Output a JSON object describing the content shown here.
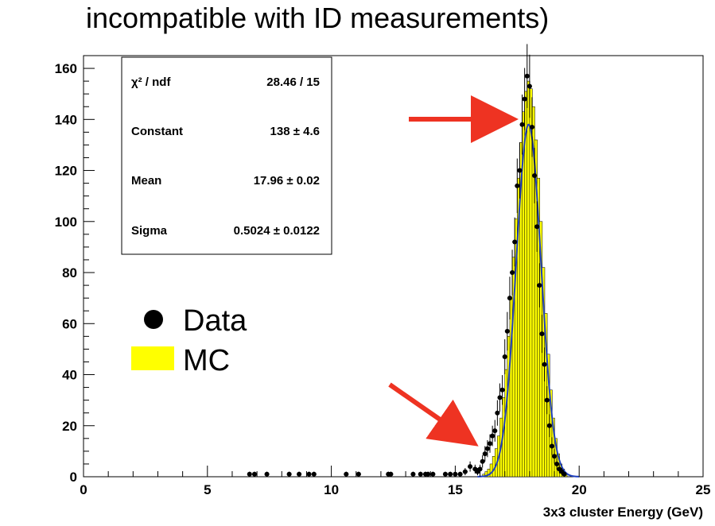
{
  "title": "incompatible with ID measurements)",
  "stats_box": {
    "rows": [
      {
        "label": "χ² / ndf",
        "value": "28.46 / 15"
      },
      {
        "label": "Constant",
        "value": "138 ± 4.6"
      },
      {
        "label": "Mean",
        "value": "17.96 ± 0.02"
      },
      {
        "label": "Sigma",
        "value": "0.5024 ± 0.0122"
      }
    ]
  },
  "legend": {
    "items": [
      {
        "label": "Data",
        "marker": "black-dot"
      },
      {
        "label": "MC",
        "marker": "yellow-box"
      }
    ]
  },
  "colors": {
    "mc_fill": "#ffff00",
    "fit_line": "#1f3fbf",
    "data_marker": "#000000",
    "arrow": "#ee3322",
    "frame": "#000000"
  },
  "chart_data": {
    "type": "scatter",
    "xlabel": "3x3 cluster Energy (GeV)",
    "ylabel": "",
    "xlim": [
      0,
      25
    ],
    "ylim": [
      0,
      165
    ],
    "x_ticks": [
      "0",
      "5",
      "10",
      "15",
      "20",
      "25"
    ],
    "y_ticks": [
      "0",
      "20",
      "40",
      "60",
      "80",
      "100",
      "120",
      "140",
      "160"
    ],
    "grid": false,
    "legend_position": "left-middle",
    "series": [
      {
        "name": "Data",
        "kind": "points",
        "x": [
          6.7,
          6.9,
          7.4,
          8.3,
          8.7,
          9.1,
          9.3,
          10.6,
          11.1,
          12.3,
          12.4,
          13.3,
          13.6,
          13.8,
          13.9,
          14.1,
          14.6,
          14.8,
          15.0,
          15.2,
          15.4,
          15.6,
          15.8,
          15.9,
          16.0,
          16.1,
          16.2,
          16.3,
          16.4,
          16.5,
          16.6,
          16.7,
          16.8,
          16.9,
          17.0,
          17.1,
          17.2,
          17.3,
          17.4,
          17.5,
          17.6,
          17.7,
          17.8,
          17.9,
          18.0,
          18.1,
          18.2,
          18.3,
          18.4,
          18.5,
          18.6,
          18.7,
          18.8,
          18.9,
          19.0,
          19.1,
          19.2,
          19.3,
          19.4
        ],
        "y": [
          1,
          1,
          1,
          1,
          1,
          1,
          1,
          1,
          1,
          1,
          1,
          1,
          1,
          1,
          1,
          1,
          1,
          1,
          1,
          1,
          2,
          4,
          3,
          2,
          3,
          6,
          9,
          11,
          13,
          16,
          18,
          25,
          31,
          34,
          47,
          57,
          70,
          80,
          92,
          114,
          120,
          138,
          148,
          157,
          153,
          137,
          118,
          98,
          75,
          56,
          44,
          30,
          20,
          12,
          8,
          5,
          3,
          2,
          1
        ]
      },
      {
        "name": "MC",
        "kind": "filled-histogram",
        "bin_start": 16.0,
        "bin_width": 0.1,
        "values": [
          0,
          1,
          2,
          3,
          5,
          8,
          11,
          16,
          23,
          31,
          42,
          55,
          70,
          86,
          101,
          117,
          131,
          143,
          151,
          155,
          152,
          145,
          132,
          117,
          100,
          82,
          64,
          48,
          34,
          23,
          15,
          9,
          5,
          3,
          1,
          0
        ]
      },
      {
        "name": "",
        "kind": "gaussian-fit",
        "constant": 138,
        "mean": 17.96,
        "sigma": 0.5024
      }
    ]
  }
}
